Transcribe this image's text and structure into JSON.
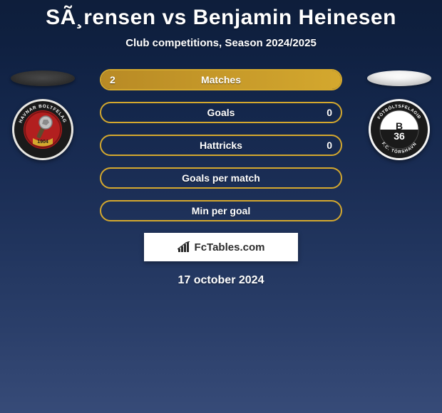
{
  "title": "SÃ¸rensen vs Benjamin Heinesen",
  "subtitle": "Club competitions, Season 2024/2025",
  "date": "17 october 2024",
  "attribution": "FcTables.com",
  "colors": {
    "bar_border": "#d4a82e",
    "bar_fill_left": "#b88a25",
    "bar_fill_left_light": "#d4a82e",
    "ellipse_left": "dark",
    "ellipse_right": "light"
  },
  "left_club": {
    "name": "HB Tórshavn",
    "crest": {
      "outer": "#e8e7e3",
      "ring": "#1a1a1a",
      "ring_text_color": "#ffffff",
      "inner": "#b21f1f",
      "top_text": "HAVNAR BOLTFELAG",
      "year": "1904"
    }
  },
  "right_club": {
    "name": "B36 Tórshavn",
    "crest": {
      "outer": "#f4f4f4",
      "ring": "#1a1a1a",
      "ring_text_color": "#ffffff",
      "inner_top": "#ffffff",
      "inner_bottom": "#1a1a1a",
      "top_text": "FÓTBÓLTSFELAGIÐ",
      "bottom_text": "F.C. TÓRSHAVN",
      "center_text": "B36"
    }
  },
  "bars": [
    {
      "label": "Matches",
      "left": "2",
      "right": "",
      "fill_pct": 100,
      "show_left": true,
      "show_right": false
    },
    {
      "label": "Goals",
      "left": "",
      "right": "0",
      "fill_pct": 0,
      "show_left": false,
      "show_right": true
    },
    {
      "label": "Hattricks",
      "left": "",
      "right": "0",
      "fill_pct": 0,
      "show_left": false,
      "show_right": true
    },
    {
      "label": "Goals per match",
      "left": "",
      "right": "",
      "fill_pct": 0,
      "show_left": false,
      "show_right": false
    },
    {
      "label": "Min per goal",
      "left": "",
      "right": "",
      "fill_pct": 0,
      "show_left": false,
      "show_right": false
    }
  ]
}
